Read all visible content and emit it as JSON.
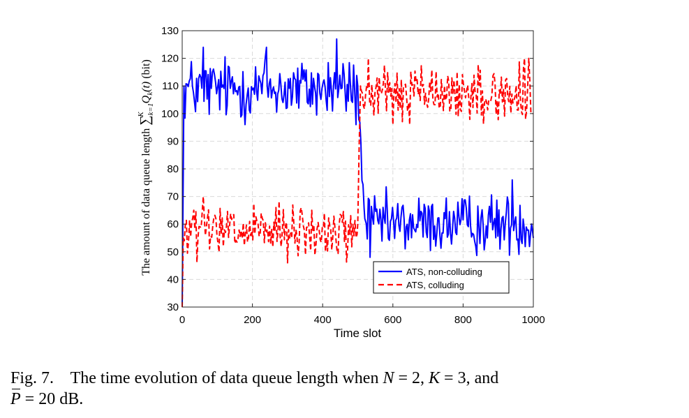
{
  "chart_data": {
    "type": "line",
    "xlabel": "Time slot",
    "ylabel": "The amount of data queue length ∑_{k=1}^{K} Q_k(t) (bit)",
    "ylabel_parts": {
      "prefix": "The amount of data queue length ",
      "sum": "∑",
      "sub": "k=1",
      "sup": "K",
      "q": "Q",
      "qsub": "k",
      "targ": "(t)",
      "unit": " (bit)"
    },
    "xlim": [
      0,
      1000
    ],
    "ylim": [
      30,
      130
    ],
    "x_ticks": [
      0,
      200,
      400,
      600,
      800,
      1000
    ],
    "y_ticks": [
      30,
      40,
      50,
      60,
      70,
      80,
      90,
      100,
      110,
      120,
      130
    ],
    "grid": true,
    "legend_position": "lower-right",
    "series": [
      {
        "name": "ATS, non-colluding",
        "color": "#0000ff",
        "style": "solid",
        "phases": [
          {
            "x_start": 0,
            "x_end": 500,
            "mean": 109,
            "noise": 5.5,
            "min": 96,
            "max": 127
          },
          {
            "x_start": 500,
            "x_end": 1000,
            "mean": 60,
            "noise": 5.0,
            "min": 47,
            "max": 76
          }
        ],
        "transition": {
          "x_start": 500,
          "x_end": 520
        },
        "initial_ramp": {
          "x": [
            0,
            5
          ],
          "y": [
            30,
            110
          ]
        },
        "points": [
          [
            0,
            30
          ],
          [
            5,
            110
          ],
          [
            60,
            124
          ],
          [
            240,
            124
          ],
          [
            440,
            127
          ],
          [
            495,
            96
          ],
          [
            500,
            110
          ],
          [
            520,
            62
          ],
          [
            535,
            48
          ],
          [
            940,
            76
          ],
          [
            1000,
            55
          ]
        ]
      },
      {
        "name": "ATS, colluding",
        "color": "#ff0000",
        "style": "dashed",
        "phases": [
          {
            "x_start": 0,
            "x_end": 500,
            "mean": 57,
            "noise": 4.5,
            "min": 46,
            "max": 71
          },
          {
            "x_start": 500,
            "x_end": 1000,
            "mean": 107,
            "noise": 5.0,
            "min": 96,
            "max": 120
          }
        ],
        "transition": {
          "x_start": 498,
          "x_end": 508
        },
        "initial_ramp": {
          "x": [
            0,
            3
          ],
          "y": [
            30,
            55
          ]
        },
        "points": [
          [
            0,
            30
          ],
          [
            3,
            55
          ],
          [
            60,
            70
          ],
          [
            300,
            46
          ],
          [
            500,
            60
          ],
          [
            508,
            110
          ],
          [
            530,
            120
          ],
          [
            600,
            96
          ],
          [
            1000,
            100
          ]
        ]
      }
    ]
  },
  "caption": {
    "label": "Fig. 7.",
    "text_1": "The time evolution of data queue length when",
    "var_N": "N",
    "eq_N": "= 2,",
    "var_K": "K",
    "eq_K": "= 3, and",
    "var_P": "P",
    "eq_P": "= 20 dB."
  }
}
